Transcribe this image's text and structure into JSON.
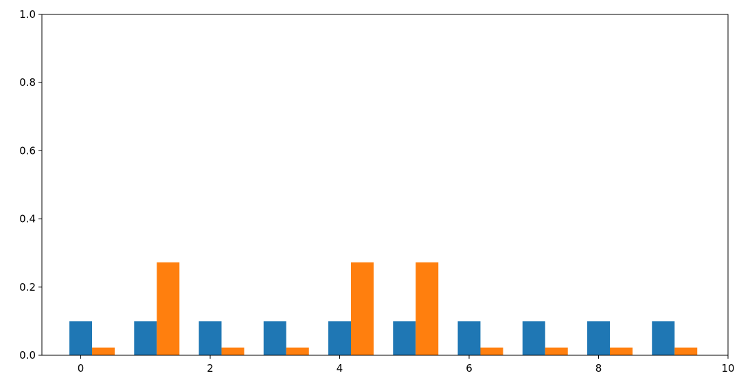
{
  "chart_data": {
    "type": "bar",
    "title": "",
    "xlabel": "",
    "ylabel": "",
    "x": [
      0,
      1,
      2,
      3,
      4,
      5,
      6,
      7,
      8,
      9
    ],
    "bar_width": 0.35,
    "xlim": [
      -0.6,
      10
    ],
    "ylim": [
      0,
      1.0
    ],
    "xticks": [
      0,
      2,
      4,
      6,
      8,
      10
    ],
    "xtick_labels": [
      "0",
      "2",
      "4",
      "6",
      "8",
      "10"
    ],
    "yticks": [
      0,
      0.2,
      0.4,
      0.6,
      0.8,
      1.0
    ],
    "ytick_labels": [
      "0.0",
      "0.2",
      "0.4",
      "0.6",
      "0.8",
      "1.0"
    ],
    "grid": false,
    "legend": false,
    "series": [
      {
        "color": "#1f77b4",
        "offset": 0,
        "values": [
          0.1,
          0.1,
          0.1,
          0.1,
          0.1,
          0.1,
          0.1,
          0.1,
          0.1,
          0.1
        ]
      },
      {
        "color": "#ff7f0e",
        "offset": 0.35,
        "values": [
          0.0227,
          0.2727,
          0.0227,
          0.0227,
          0.2727,
          0.2727,
          0.0227,
          0.0227,
          0.0227,
          0.0227
        ]
      }
    ]
  }
}
